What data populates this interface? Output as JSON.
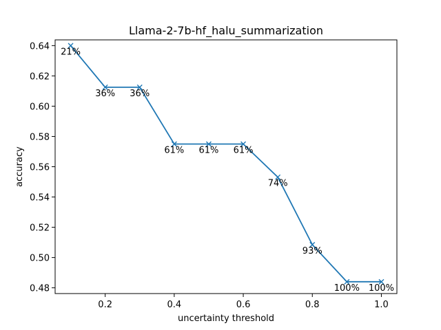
{
  "chart_data": {
    "type": "line",
    "title": "Llama-2-7b-hf_halu_summarization",
    "xlabel": "uncertainty threshold",
    "ylabel": "accuracy",
    "xlim": [
      0.055,
      1.045
    ],
    "ylim": [
      0.4762,
      0.6438
    ],
    "xticks": [
      0.2,
      0.4,
      0.6,
      0.8,
      1.0
    ],
    "xtick_labels": [
      "0.2",
      "0.4",
      "0.6",
      "0.8",
      "1.0"
    ],
    "yticks": [
      0.48,
      0.5,
      0.52,
      0.54,
      0.56,
      0.58,
      0.6,
      0.62,
      0.64
    ],
    "ytick_labels": [
      "0.48",
      "0.50",
      "0.52",
      "0.54",
      "0.56",
      "0.58",
      "0.60",
      "0.62",
      "0.64"
    ],
    "grid": false,
    "color": "#1f77b4",
    "marker": "x",
    "series": [
      {
        "x": [
          0.1,
          0.2,
          0.3,
          0.4,
          0.5,
          0.6,
          0.7,
          0.8,
          0.9,
          1.0
        ],
        "y": [
          0.64,
          0.6125,
          0.6125,
          0.575,
          0.575,
          0.575,
          0.5531,
          0.5085,
          0.484,
          0.484
        ],
        "labels": [
          "21%",
          "36%",
          "36%",
          "61%",
          "61%",
          "61%",
          "74%",
          "93%",
          "100%",
          "100%"
        ]
      }
    ]
  }
}
